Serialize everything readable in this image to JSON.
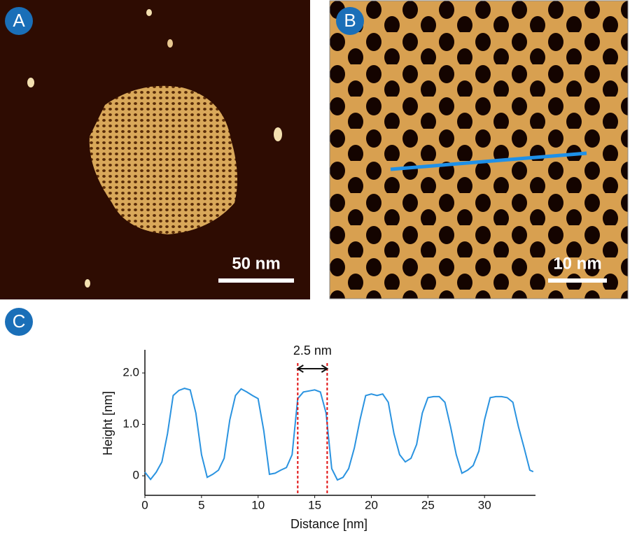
{
  "panels": [
    {
      "label": "A",
      "scale_bar": "50 nm"
    },
    {
      "label": "B",
      "scale_bar": "10 nm"
    }
  ],
  "chart_data": {
    "type": "line",
    "panel_label": "C",
    "x_label": "Distance [nm]",
    "y_label": "Height [nm]",
    "x": [
      0,
      0.5,
      1,
      1.5,
      2,
      2.5,
      3,
      3.5,
      4,
      4.5,
      5,
      5.5,
      6,
      6.5,
      7,
      7.5,
      8,
      8.5,
      9,
      9.5,
      10,
      10.5,
      11,
      11.5,
      12,
      12.5,
      13,
      13.5,
      14,
      14.5,
      15,
      15.5,
      16,
      16.5,
      17,
      17.5,
      18,
      18.5,
      19,
      19.5,
      20,
      20.5,
      21,
      21.5,
      22,
      22.5,
      23,
      23.5,
      24,
      24.5,
      25,
      25.5,
      26,
      26.5,
      27,
      27.5,
      28,
      28.5,
      29,
      29.5,
      30,
      30.5,
      31,
      31.5,
      32,
      32.5,
      33,
      33.5,
      34,
      34.3
    ],
    "series": [
      {
        "color": "#2a93e0",
        "values": [
          0.07,
          -0.07,
          0.07,
          0.27,
          0.82,
          1.56,
          1.66,
          1.7,
          1.67,
          1.22,
          0.41,
          -0.03,
          0.03,
          0.11,
          0.34,
          1.09,
          1.56,
          1.69,
          1.63,
          1.56,
          1.5,
          0.88,
          0.03,
          0.05,
          0.11,
          0.16,
          0.41,
          1.5,
          1.63,
          1.65,
          1.67,
          1.63,
          1.22,
          0.14,
          -0.08,
          -0.03,
          0.14,
          0.54,
          1.09,
          1.56,
          1.59,
          1.56,
          1.59,
          1.43,
          0.82,
          0.41,
          0.27,
          0.34,
          0.61,
          1.22,
          1.52,
          1.54,
          1.54,
          1.43,
          0.95,
          0.41,
          0.05,
          0.11,
          0.2,
          0.48,
          1.09,
          1.52,
          1.54,
          1.54,
          1.52,
          1.43,
          0.95,
          0.54,
          0.11,
          0.08
        ]
      }
    ],
    "xlim": [
      0,
      34.5
    ],
    "ylim": [
      -0.38,
      2.45
    ],
    "xticks": [
      0,
      5,
      10,
      15,
      20,
      25,
      30
    ],
    "yticks": [
      {
        "value": 0,
        "label": "0"
      },
      {
        "value": 1,
        "label": "1.0"
      },
      {
        "value": 2,
        "label": "2.0"
      }
    ],
    "annotation": {
      "text": "2.5 nm",
      "x_start": 13.5,
      "x_end": 16.1
    }
  }
}
